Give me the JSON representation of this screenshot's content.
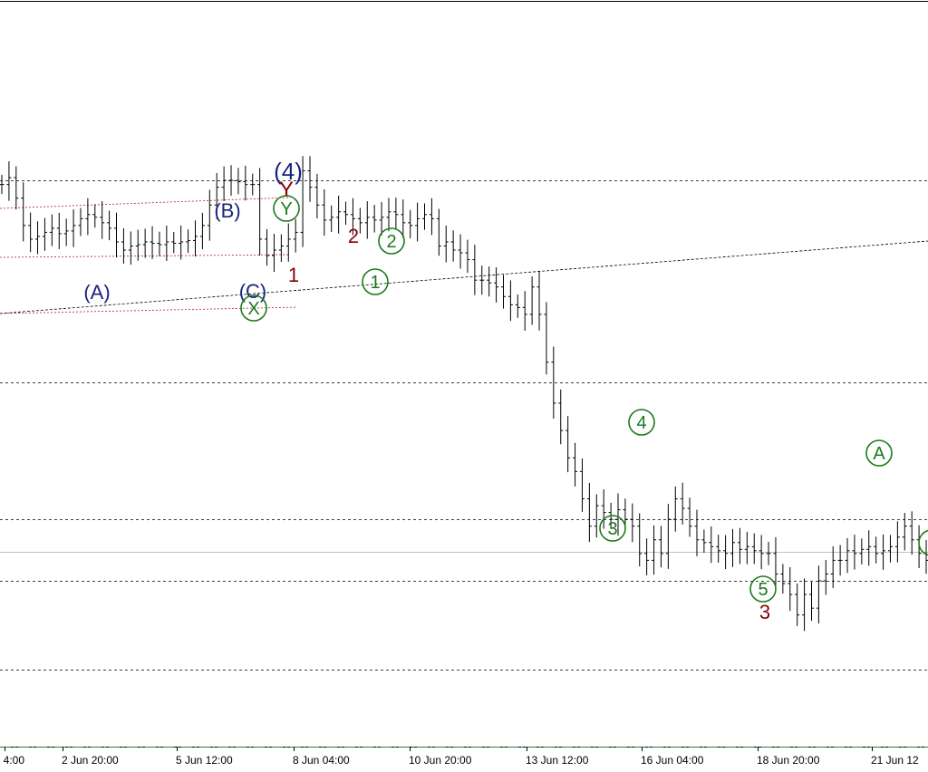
{
  "chart_data": {
    "type": "bar",
    "subtype": "ohlc-price-with-elliott-wave-labels",
    "x_tick_labels": [
      "4:00",
      "2 Jun 20:00",
      "5 Jun 12:00",
      "8 Jun 04:00",
      "10 Jun 20:00",
      "13 Jun 12:00",
      "16 Jun 04:00",
      "18 Jun 20:00",
      "21 Jun 12"
    ],
    "series": [
      {
        "values": [
          1.03,
          1.0305,
          1.029,
          1.027,
          1.026,
          1.0262,
          1.0265,
          1.0268,
          1.0264,
          1.0266,
          1.027,
          1.0275,
          1.0278,
          1.0276,
          1.0272,
          1.0268,
          1.0258,
          1.0252,
          1.0255,
          1.0256,
          1.0258,
          1.0257,
          1.0256,
          1.0258,
          1.0257,
          1.0258,
          1.0259,
          1.0262,
          1.027,
          1.0285,
          1.0298,
          1.0303,
          1.0303,
          1.0302,
          1.03,
          1.03,
          1.026,
          1.0248,
          1.0252,
          1.0255,
          1.026,
          1.0265,
          1.031,
          1.0298,
          1.0285,
          1.0274,
          1.0276,
          1.028,
          1.0278,
          1.0275,
          1.0272,
          1.0276,
          1.0274,
          1.0276,
          1.028,
          1.0278,
          1.0272,
          1.027,
          1.0275,
          1.0278,
          1.0275,
          1.0255,
          1.0258,
          1.0252,
          1.025,
          1.0245,
          1.023,
          1.023,
          1.0228,
          1.0225,
          1.0218,
          1.0212,
          1.021,
          1.0205,
          1.0225,
          1.0205,
          1.017,
          1.014,
          1.012,
          1.01,
          1.009,
          1.007,
          1.005,
          1.0065,
          1.006,
          1.0055,
          1.0062,
          1.0055,
          1.005,
          1.003,
          1.0025,
          1.004,
          1.003,
          1.0055,
          1.007,
          1.0063,
          1.005,
          1.004,
          1.0038,
          1.0035,
          1.0032,
          1.003,
          1.0038,
          1.0033,
          1.0035,
          1.0032,
          1.003,
          1.003,
          1.0015,
          1.0008,
          1.0,
          0.9985,
          1.0,
          0.999,
          1.001,
          1.0015,
          1.0025,
          1.0025,
          1.0032,
          1.003,
          1.0033,
          1.0035,
          1.003,
          1.0032,
          1.0035,
          1.0042,
          1.005,
          1.004,
          1.003,
          1.0025
        ]
      }
    ],
    "ylim": [
      0.989,
      1.0435
    ],
    "horizontal_levels": [
      1.0303,
      1.0155,
      1.0055,
      1.001,
      0.9945
    ],
    "price_line": 1.0031,
    "target_level": 0.9889,
    "wave_labels": [
      {
        "text": "(4)",
        "degree": "intermediate",
        "color": "#1a237e"
      },
      {
        "text": "(A)",
        "degree": "intermediate",
        "color": "#1a237e"
      },
      {
        "text": "(B)",
        "degree": "intermediate",
        "color": "#1a237e"
      },
      {
        "text": "(C)",
        "degree": "intermediate",
        "color": "#1a237e"
      },
      {
        "text": "Y",
        "degree": "minor",
        "color": "#8b0000"
      },
      {
        "text": "1",
        "degree": "minor",
        "color": "#8b0000"
      },
      {
        "text": "2",
        "degree": "minor",
        "color": "#8b0000"
      },
      {
        "text": "3",
        "degree": "minor",
        "color": "#8b0000"
      },
      {
        "text": "Y",
        "degree": "minute",
        "color": "#1b7a1b",
        "circled": true
      },
      {
        "text": "X",
        "degree": "minute",
        "color": "#1b7a1b",
        "circled": true
      },
      {
        "text": "1",
        "degree": "minute",
        "color": "#1b7a1b",
        "circled": true
      },
      {
        "text": "2",
        "degree": "minute",
        "color": "#1b7a1b",
        "circled": true
      },
      {
        "text": "3",
        "degree": "minute",
        "color": "#1b7a1b",
        "circled": true
      },
      {
        "text": "4",
        "degree": "minute",
        "color": "#1b7a1b",
        "circled": true
      },
      {
        "text": "5",
        "degree": "minute",
        "color": "#1b7a1b",
        "circled": true
      },
      {
        "text": "A",
        "degree": "minute",
        "color": "#1b7a1b",
        "circled": true
      },
      {
        "text": "",
        "degree": "minute",
        "color": "#1b7a1b",
        "circled": true
      }
    ],
    "colors": {
      "bars": "#000000",
      "grid_level": "#000000",
      "red_level": "#b22222",
      "price_line": "#c0c0c0",
      "target_line": "#2e7d32"
    },
    "grid": false
  }
}
